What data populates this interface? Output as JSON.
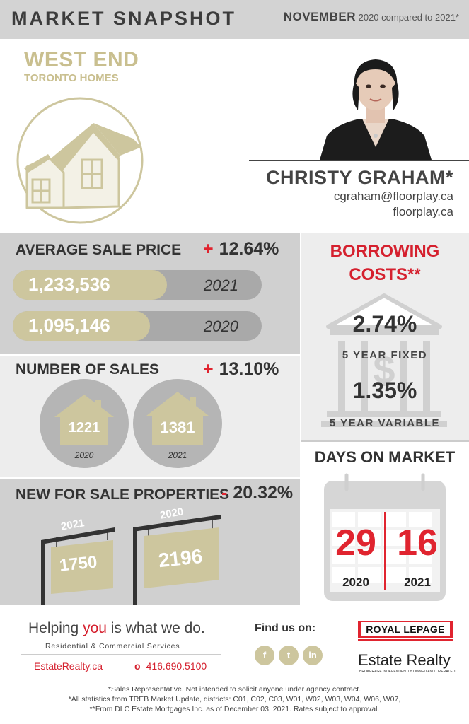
{
  "header": {
    "title": "MARKET SNAPSHOT",
    "month": "NOVEMBER",
    "comparison": "2020 compared to 2021*"
  },
  "area": {
    "title": "WEST END",
    "subtitle": "TORONTO HOMES"
  },
  "agent": {
    "name": "CHRISTY GRAHAM*",
    "email": "cgraham@floorplay.ca",
    "website": "floorplay.ca"
  },
  "average_sale_price": {
    "title": "AVERAGE SALE PRICE",
    "change_sign": "+",
    "change": "12.64%",
    "rows": [
      {
        "value": "1,233,536",
        "year": "2021",
        "fraction": 0.62
      },
      {
        "value": "1,095,146",
        "year": "2020",
        "fraction": 0.55
      }
    ]
  },
  "number_of_sales": {
    "title": "NUMBER OF SALES",
    "change_sign": "+",
    "change": "13.10%",
    "items": [
      {
        "value": "1221",
        "year": "2020"
      },
      {
        "value": "1381",
        "year": "2021"
      }
    ]
  },
  "new_for_sale": {
    "title": "NEW FOR SALE PROPERTIES",
    "change_sign": "-",
    "change": "20.32%",
    "items": [
      {
        "value": "1750",
        "year": "2021"
      },
      {
        "value": "2196",
        "year": "2020"
      }
    ]
  },
  "borrowing": {
    "title_line1": "BORROWING",
    "title_line2": "COSTS**",
    "fixed_rate": "2.74%",
    "fixed_label": "5 YEAR FIXED",
    "variable_rate": "1.35%",
    "variable_label": "5 YEAR VARIABLE"
  },
  "days_on_market": {
    "title": "DAYS ON MARKET",
    "items": [
      {
        "value": "29",
        "year": "2020"
      },
      {
        "value": "16",
        "year": "2021"
      }
    ]
  },
  "footer": {
    "tagline_start": "Helping ",
    "tagline_emphasis": "you",
    "tagline_end": " is what we do.",
    "services": "Residential & Commercial Services",
    "site": "EstateRealty.ca",
    "phone_dot": "o",
    "phone": "416.690.5100",
    "find_us": "Find us on:",
    "social": [
      {
        "label": "f",
        "icon": "facebook-icon"
      },
      {
        "label": "t",
        "icon": "twitter-icon"
      },
      {
        "label": "in",
        "icon": "linkedin-icon"
      }
    ],
    "brand_line1": "ROYAL LEPAGE",
    "brand_line2": "Estate Realty",
    "brand_tagline": "BROKERAGE INDEPENDENTLY OWNED AND OPERATED"
  },
  "disclaimer": [
    "*Sales Representative. Not intended to solicit anyone under agency contract.",
    "*All statistics from TREB Market Update, districts: C01, C02, C03, W01, W02, W03, W04, W06, W07,",
    "**From DLC Estate Mortgages Inc. as of December 03, 2021. Rates subject to approval."
  ],
  "colors": {
    "gold": "#cdc69e",
    "red": "#e0242f",
    "dark": "#333333"
  }
}
